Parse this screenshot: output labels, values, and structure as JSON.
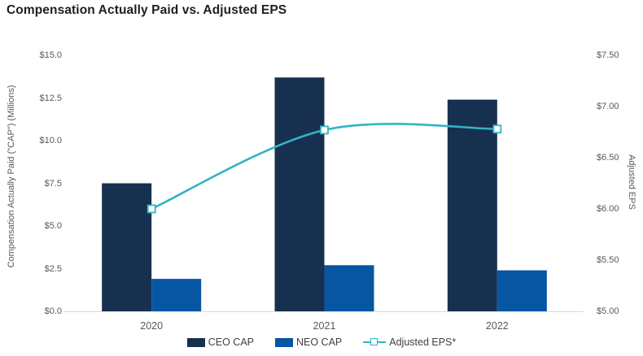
{
  "title": "Compensation Actually Paid vs. Adjusted EPS",
  "chart_data": {
    "type": "combo-bar-line",
    "title": "Compensation Actually Paid vs. Adjusted EPS",
    "categories": [
      "2020",
      "2021",
      "2022"
    ],
    "series": [
      {
        "name": "CEO CAP",
        "type": "bar",
        "axis": "left",
        "color": "#17304F",
        "values": [
          7.5,
          13.7,
          12.4
        ]
      },
      {
        "name": "NEO CAP",
        "type": "bar",
        "axis": "left",
        "color": "#0656A4",
        "values": [
          1.9,
          2.7,
          2.4
        ]
      },
      {
        "name": "Adjusted EPS*",
        "type": "line",
        "axis": "right",
        "color": "#31B4C5",
        "values": [
          6.0,
          6.77,
          6.78
        ]
      }
    ],
    "left_axis": {
      "label": "Compensation Actually Paid (\"CAP\") (Millions)",
      "min": 0,
      "max": 15,
      "step": 2.5,
      "ticks": [
        "$15.0",
        "$12.5",
        "$10.0",
        "$7.5",
        "$5.0",
        "$2.5",
        "$0.0"
      ]
    },
    "right_axis": {
      "label": "Adjusted EPS",
      "min": 5.0,
      "max": 7.5,
      "step": 0.5,
      "ticks": [
        "$7.50",
        "$7.00",
        "$6.50",
        "$6.00",
        "$5.50",
        "$5.00"
      ]
    },
    "legend_position": "bottom",
    "grid": false,
    "axis_line_color": "#D9D9D9",
    "text_color": "#595959",
    "smooth_line": true
  }
}
